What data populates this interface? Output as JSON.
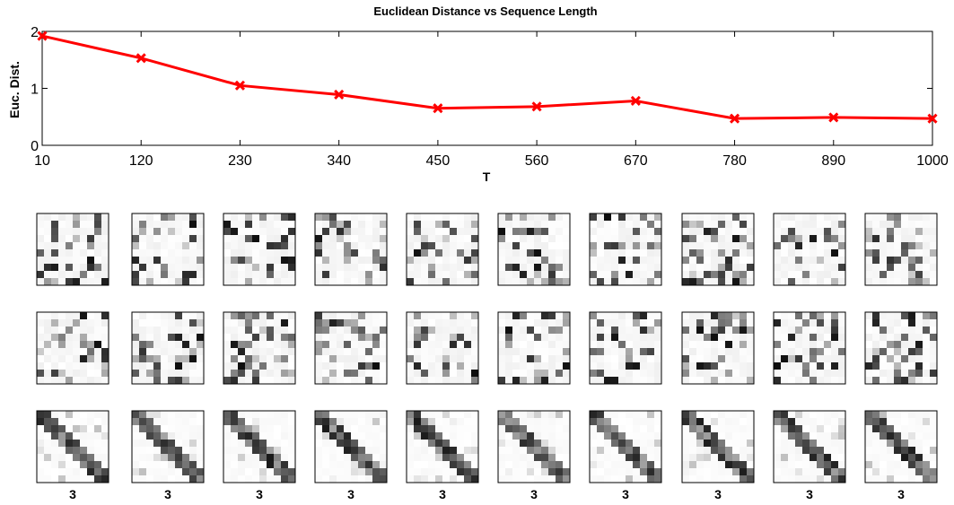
{
  "chart_data": [
    {
      "type": "line",
      "title": "Euclidean Distance vs Sequence Length",
      "xlabel": "T",
      "ylabel": "Euc. Dist.",
      "x": [
        10,
        120,
        230,
        340,
        450,
        560,
        670,
        780,
        890,
        1000
      ],
      "xticks": [
        "10",
        "120",
        "230",
        "340",
        "450",
        "560",
        "670",
        "780",
        "890",
        "1000"
      ],
      "yticks": [
        "0",
        "1",
        "2"
      ],
      "ylim": [
        0,
        2
      ],
      "xlim": [
        10,
        1000
      ],
      "grid": false,
      "series": [
        {
          "values": [
            1.92,
            1.53,
            1.05,
            0.89,
            0.65,
            0.68,
            0.78,
            0.47,
            0.49,
            0.47
          ],
          "color": "#ff0000",
          "marker": "x"
        }
      ]
    },
    {
      "type": "heatmap",
      "description_rows": 3,
      "columns": 10,
      "matrix_size": 10,
      "colormap": "gray_reversed",
      "column_labels": [
        "3",
        "3",
        "3",
        "3",
        "3",
        "3",
        "3",
        "3",
        "3",
        "3"
      ]
    }
  ]
}
